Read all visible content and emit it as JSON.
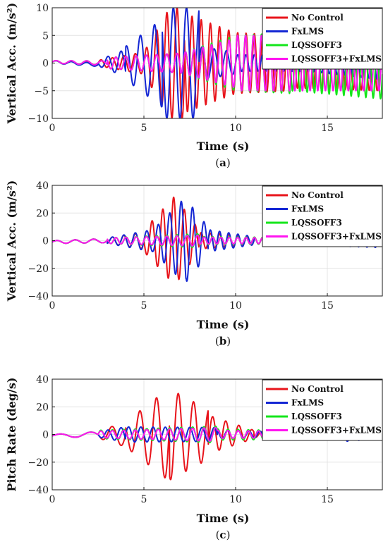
{
  "chart_data": [
    {
      "type": "line",
      "panel": "a",
      "caption_prefix": "(",
      "caption_letter": "a",
      "caption_suffix": ")",
      "xlabel": "Time (s)",
      "ylabel": "Vertical Acc. (m/s²)",
      "xlim": [
        0,
        18
      ],
      "ylim": [
        -10,
        10
      ],
      "xticks": [
        0,
        5,
        10,
        15
      ],
      "yticks": [
        -10,
        -5,
        0,
        5,
        10
      ],
      "grid": true,
      "legend_position": "top-right",
      "series": [
        {
          "name": "No Control",
          "color": "#e8141b",
          "width": 2.0,
          "segments": [
            {
              "t0": 0.0,
              "t1": 2.5,
              "f": 1.2,
              "a0": 0.25,
              "a1": 0.3,
              "off0": 0.2,
              "off1": 0.0
            },
            {
              "t0": 2.5,
              "t1": 5.0,
              "f": 1.6,
              "a0": 0.5,
              "a1": 2.0,
              "off0": 0.0,
              "off1": 0.0
            },
            {
              "t0": 5.0,
              "t1": 6.4,
              "f": 1.8,
              "a0": 2.0,
              "a1": 10.0,
              "off0": 0.0,
              "off1": 0.0
            },
            {
              "t0": 6.4,
              "t1": 7.2,
              "f": 1.8,
              "a0": 10.0,
              "a1": 10.0,
              "off0": 0.0,
              "off1": 0.0
            },
            {
              "t0": 7.2,
              "t1": 10.0,
              "f": 2.0,
              "a0": 9.0,
              "a1": 5.5,
              "off0": 0.0,
              "off1": 0.0
            },
            {
              "t0": 10.0,
              "t1": 13.0,
              "f": 2.2,
              "a0": 5.5,
              "a1": 5.0,
              "off0": 0.0,
              "off1": 0.0
            },
            {
              "t0": 13.0,
              "t1": 18.0,
              "f": 2.3,
              "a0": 4.5,
              "a1": 4.0,
              "off0": 0.0,
              "off1": -1.0
            }
          ]
        },
        {
          "name": "FxLMS",
          "color": "#1427d4",
          "width": 2.0,
          "segments": [
            {
              "t0": 0.0,
              "t1": 2.5,
              "f": 1.2,
              "a0": 0.25,
              "a1": 0.3,
              "off0": 0.2,
              "off1": -0.3
            },
            {
              "t0": 2.5,
              "t1": 4.0,
              "f": 1.4,
              "a0": 0.5,
              "a1": 2.5,
              "off0": 0.0,
              "off1": 0.0
            },
            {
              "t0": 4.0,
              "t1": 6.0,
              "f": 1.3,
              "a0": 3.0,
              "a1": 8.0,
              "off0": 0.0,
              "off1": 0.0
            },
            {
              "t0": 6.0,
              "t1": 8.0,
              "f": 1.4,
              "a0": 10.0,
              "a1": 10.0,
              "off0": 0.0,
              "off1": 0.0
            },
            {
              "t0": 8.0,
              "t1": 10.0,
              "f": 1.5,
              "a0": 3.0,
              "a1": 2.0,
              "off0": 0.0,
              "off1": 0.0
            },
            {
              "t0": 10.0,
              "t1": 14.0,
              "f": 2.2,
              "a0": 1.5,
              "a1": 1.5,
              "off0": 0.0,
              "off1": 0.0
            },
            {
              "t0": 14.0,
              "t1": 18.0,
              "f": 2.3,
              "a0": 1.5,
              "a1": 2.0,
              "off0": 0.0,
              "off1": -1.0
            }
          ]
        },
        {
          "name": "LQSSOFF3",
          "color": "#14e61b",
          "width": 2.0,
          "segments": [
            {
              "t0": 0.0,
              "t1": 3.0,
              "f": 1.2,
              "a0": 0.25,
              "a1": 0.4,
              "off0": 0.2,
              "off1": 0.0
            },
            {
              "t0": 3.0,
              "t1": 7.0,
              "f": 1.8,
              "a0": 1.0,
              "a1": 1.8,
              "off0": 0.0,
              "off1": 0.0
            },
            {
              "t0": 7.0,
              "t1": 10.0,
              "f": 2.1,
              "a0": 1.8,
              "a1": 5.0,
              "off0": 0.0,
              "off1": 0.0
            },
            {
              "t0": 10.0,
              "t1": 13.0,
              "f": 2.3,
              "a0": 5.0,
              "a1": 5.5,
              "off0": 0.0,
              "off1": 0.0
            },
            {
              "t0": 13.0,
              "t1": 18.0,
              "f": 2.5,
              "a0": 5.0,
              "a1": 4.5,
              "off0": 0.0,
              "off1": -2.0
            }
          ]
        },
        {
          "name": "LQSSOFF3+FxLMS",
          "color": "#ff14f0",
          "width": 2.0,
          "segments": [
            {
              "t0": 0.0,
              "t1": 3.0,
              "f": 1.2,
              "a0": 0.25,
              "a1": 0.4,
              "off0": 0.2,
              "off1": 0.0
            },
            {
              "t0": 3.0,
              "t1": 7.0,
              "f": 1.8,
              "a0": 1.0,
              "a1": 1.8,
              "off0": 0.0,
              "off1": 0.0
            },
            {
              "t0": 7.0,
              "t1": 10.0,
              "f": 2.1,
              "a0": 1.8,
              "a1": 4.5,
              "off0": 0.0,
              "off1": 0.0
            },
            {
              "t0": 10.0,
              "t1": 13.0,
              "f": 2.3,
              "a0": 5.0,
              "a1": 5.0,
              "off0": 0.0,
              "off1": 0.0
            },
            {
              "t0": 13.0,
              "t1": 18.0,
              "f": 2.4,
              "a0": 5.0,
              "a1": 4.0,
              "off0": 0.0,
              "off1": -1.0
            }
          ]
        }
      ]
    },
    {
      "type": "line",
      "panel": "b",
      "caption_prefix": "(",
      "caption_letter": "b",
      "caption_suffix": ")",
      "xlabel": "Time (s)",
      "ylabel": "Vertical Acc. (m/s²)",
      "xlim": [
        0,
        18
      ],
      "ylim": [
        -40,
        40
      ],
      "xticks": [
        0,
        5,
        10,
        15
      ],
      "yticks": [
        -40,
        -20,
        0,
        20,
        40
      ],
      "grid": true,
      "legend_position": "top-right",
      "series": [
        {
          "name": "No Control",
          "color": "#e8141b",
          "width": 2.0,
          "segments": [
            {
              "t0": 0.0,
              "t1": 3.0,
              "f": 1.0,
              "a0": 1.0,
              "a1": 1.5,
              "off0": -1.0,
              "off1": 0.0
            },
            {
              "t0": 3.0,
              "t1": 5.0,
              "f": 1.6,
              "a0": 2.0,
              "a1": 6.0,
              "off0": 0.0,
              "off1": 0.0
            },
            {
              "t0": 5.0,
              "t1": 6.8,
              "f": 1.7,
              "a0": 8.0,
              "a1": 34.0,
              "off0": 0.0,
              "off1": 0.0
            },
            {
              "t0": 6.8,
              "t1": 8.0,
              "f": 1.7,
              "a0": 30.0,
              "a1": 8.0,
              "off0": 0.0,
              "off1": 0.0
            },
            {
              "t0": 8.0,
              "t1": 11.0,
              "f": 2.0,
              "a0": 6.0,
              "a1": 3.0,
              "off0": 0.0,
              "off1": 0.0
            },
            {
              "t0": 11.0,
              "t1": 18.0,
              "f": 2.2,
              "a0": 2.5,
              "a1": 2.0,
              "off0": 0.0,
              "off1": 0.0
            }
          ]
        },
        {
          "name": "FxLMS",
          "color": "#1427d4",
          "width": 2.0,
          "segments": [
            {
              "t0": 0.0,
              "t1": 3.0,
              "f": 1.0,
              "a0": 1.0,
              "a1": 1.5,
              "off0": -1.0,
              "off1": 0.0
            },
            {
              "t0": 3.0,
              "t1": 5.5,
              "f": 1.6,
              "a0": 2.0,
              "a1": 8.0,
              "off0": 0.0,
              "off1": 0.0
            },
            {
              "t0": 5.5,
              "t1": 7.3,
              "f": 1.6,
              "a0": 8.0,
              "a1": 32.0,
              "off0": 0.0,
              "off1": 0.0
            },
            {
              "t0": 7.3,
              "t1": 8.5,
              "f": 1.6,
              "a0": 30.0,
              "a1": 10.0,
              "off0": 0.0,
              "off1": 0.0
            },
            {
              "t0": 8.5,
              "t1": 11.0,
              "f": 2.0,
              "a0": 8.0,
              "a1": 3.0,
              "off0": 0.0,
              "off1": 0.0
            },
            {
              "t0": 11.0,
              "t1": 18.0,
              "f": 2.2,
              "a0": 2.0,
              "a1": 3.0,
              "off0": 0.0,
              "off1": -2.0
            }
          ]
        },
        {
          "name": "LQSSOFF3",
          "color": "#14e61b",
          "width": 2.0,
          "segments": [
            {
              "t0": 0.0,
              "t1": 3.0,
              "f": 1.0,
              "a0": 1.0,
              "a1": 1.5,
              "off0": -1.0,
              "off1": 0.0
            },
            {
              "t0": 3.0,
              "t1": 8.0,
              "f": 1.8,
              "a0": 2.0,
              "a1": 5.0,
              "off0": 0.0,
              "off1": 0.0
            },
            {
              "t0": 8.0,
              "t1": 18.0,
              "f": 2.2,
              "a0": 3.0,
              "a1": 1.5,
              "off0": 0.0,
              "off1": 0.0
            }
          ]
        },
        {
          "name": "LQSSOFF3+FxLMS",
          "color": "#ff14f0",
          "width": 2.0,
          "segments": [
            {
              "t0": 0.0,
              "t1": 3.0,
              "f": 1.0,
              "a0": 1.0,
              "a1": 1.5,
              "off0": -1.0,
              "off1": 0.0
            },
            {
              "t0": 3.0,
              "t1": 8.0,
              "f": 1.8,
              "a0": 2.0,
              "a1": 4.0,
              "off0": 0.0,
              "off1": 0.0
            },
            {
              "t0": 8.0,
              "t1": 18.0,
              "f": 2.2,
              "a0": 2.5,
              "a1": 1.5,
              "off0": 0.0,
              "off1": 0.0
            }
          ]
        }
      ]
    },
    {
      "type": "line",
      "panel": "c",
      "caption_prefix": "(",
      "caption_letter": "c",
      "caption_suffix": ")",
      "xlabel": "Time (s)",
      "ylabel": "Pitch Rate (deg/s)",
      "xlim": [
        0,
        18
      ],
      "ylim": [
        -40,
        40
      ],
      "xticks": [
        0,
        5,
        10,
        15
      ],
      "yticks": [
        -40,
        -20,
        0,
        20,
        40
      ],
      "grid": true,
      "legend_position": "top-right",
      "series": [
        {
          "name": "No Control",
          "color": "#e8141b",
          "width": 2.0,
          "segments": [
            {
              "t0": 0.0,
              "t1": 2.5,
              "f": 0.6,
              "a0": 1.0,
              "a1": 2.0,
              "off0": -1.0,
              "off1": 0.0
            },
            {
              "t0": 2.5,
              "t1": 4.0,
              "f": 1.0,
              "a0": 2.5,
              "a1": 9.0,
              "off0": 0.0,
              "off1": 0.0
            },
            {
              "t0": 4.0,
              "t1": 6.4,
              "f": 1.1,
              "a0": 9.0,
              "a1": 34.0,
              "off0": 0.0,
              "off1": 0.0
            },
            {
              "t0": 6.4,
              "t1": 8.5,
              "f": 1.2,
              "a0": 33.0,
              "a1": 18.0,
              "off0": 0.0,
              "off1": 0.0
            },
            {
              "t0": 8.5,
              "t1": 11.0,
              "f": 1.4,
              "a0": 14.0,
              "a1": 3.0,
              "off0": 0.0,
              "off1": 0.0
            },
            {
              "t0": 11.0,
              "t1": 18.0,
              "f": 1.6,
              "a0": 2.0,
              "a1": 1.5,
              "off0": 0.0,
              "off1": 0.0
            }
          ]
        },
        {
          "name": "FxLMS",
          "color": "#1427d4",
          "width": 2.0,
          "segments": [
            {
              "t0": 0.0,
              "t1": 2.5,
              "f": 0.6,
              "a0": 1.0,
              "a1": 2.0,
              "off0": -1.0,
              "off1": 0.0
            },
            {
              "t0": 2.5,
              "t1": 4.0,
              "f": 1.4,
              "a0": 2.0,
              "a1": 5.5,
              "off0": 0.0,
              "off1": 0.0
            },
            {
              "t0": 4.0,
              "t1": 9.0,
              "f": 1.5,
              "a0": 5.5,
              "a1": 5.0,
              "off0": 0.0,
              "off1": 0.0
            },
            {
              "t0": 9.0,
              "t1": 16.0,
              "f": 1.7,
              "a0": 3.0,
              "a1": 1.5,
              "off0": 0.0,
              "off1": 0.0
            },
            {
              "t0": 16.0,
              "t1": 18.0,
              "f": 1.6,
              "a0": 5.0,
              "a1": 3.0,
              "off0": 0.0,
              "off1": 0.0
            }
          ]
        },
        {
          "name": "LQSSOFF3",
          "color": "#14e61b",
          "width": 2.0,
          "segments": [
            {
              "t0": 0.0,
              "t1": 2.5,
              "f": 0.6,
              "a0": 1.0,
              "a1": 2.0,
              "off0": -1.0,
              "off1": 0.0
            },
            {
              "t0": 2.5,
              "t1": 9.0,
              "f": 1.6,
              "a0": 3.0,
              "a1": 6.0,
              "off0": 0.0,
              "off1": 0.0
            },
            {
              "t0": 9.0,
              "t1": 18.0,
              "f": 1.8,
              "a0": 4.0,
              "a1": 2.0,
              "off0": 0.0,
              "off1": -1.0
            }
          ]
        },
        {
          "name": "LQSSOFF3+FxLMS",
          "color": "#ff14f0",
          "width": 2.0,
          "segments": [
            {
              "t0": 0.0,
              "t1": 2.5,
              "f": 0.6,
              "a0": 1.0,
              "a1": 2.0,
              "off0": -1.0,
              "off1": 0.0
            },
            {
              "t0": 2.5,
              "t1": 9.0,
              "f": 1.6,
              "a0": 2.5,
              "a1": 5.0,
              "off0": 0.0,
              "off1": 0.0
            },
            {
              "t0": 9.0,
              "t1": 18.0,
              "f": 1.8,
              "a0": 3.0,
              "a1": 1.5,
              "off0": 0.0,
              "off1": 0.0
            }
          ]
        }
      ]
    }
  ],
  "colors": {
    "axes": "#1a1a1a",
    "grid": "#e4e4e4",
    "background": "#ffffff"
  }
}
